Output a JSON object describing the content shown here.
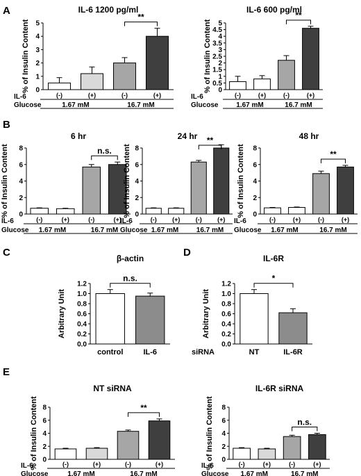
{
  "panels": [
    {
      "letter": "A"
    },
    {
      "letter": "B"
    },
    {
      "letter": "C"
    },
    {
      "letter": "D"
    },
    {
      "letter": "E"
    }
  ],
  "colors": {
    "white": "#ffffff",
    "light_gray": "#d9d9d9",
    "mid_gray": "#a6a6a6",
    "dark_gray": "#3f3f3f",
    "c_gray": "#8c8c8c",
    "axis": "#000000"
  },
  "chart_data": [
    {
      "id": "A1",
      "panel": "A",
      "type": "bar",
      "title": "IL-6 1200 pg/ml",
      "ylabel": "% of Insulin Content",
      "ylim": [
        0,
        5
      ],
      "yticks": [
        0,
        1,
        2,
        3,
        4,
        5
      ],
      "categories": [
        "(-)",
        "(+)",
        "(-)",
        "(+)"
      ],
      "values": [
        0.5,
        1.2,
        2.0,
        4.0
      ],
      "errors": [
        0.4,
        0.5,
        0.4,
        0.6
      ],
      "bar_colors": [
        "white",
        "light_gray",
        "mid_gray",
        "dark_gray"
      ],
      "row1_label": "IL-6",
      "row2_label": "Glucose",
      "groups": [
        "1.67 mM",
        "16.7 mM"
      ],
      "sig": "**"
    },
    {
      "id": "A2",
      "panel": "A",
      "type": "bar",
      "title": "IL-6 600 pg/ml",
      "ylabel": "% of Insulin Content",
      "ylim": [
        0,
        5
      ],
      "yticks": [
        0,
        0.5,
        1,
        1.5,
        2,
        2.5,
        3,
        3.5,
        4,
        4.5,
        5
      ],
      "categories": [
        "(-)",
        "(+)",
        "(-)",
        "(+)"
      ],
      "values": [
        0.6,
        0.8,
        2.2,
        4.6
      ],
      "errors": [
        0.4,
        0.25,
        0.35,
        0.15
      ],
      "bar_colors": [
        "white",
        "white",
        "mid_gray",
        "dark_gray"
      ],
      "row1_label": "IL-6",
      "row2_label": "Glucose",
      "groups": [
        "1.67 mM",
        "16.7 mM"
      ],
      "sig": "**"
    },
    {
      "id": "B1",
      "panel": "B",
      "type": "bar",
      "title": "6 hr",
      "ylabel": "% of Insulin Content",
      "ylim": [
        0,
        8
      ],
      "yticks": [
        0,
        2,
        4,
        6,
        8
      ],
      "categories": [
        "(-)",
        "(+)",
        "(-)",
        "(+)"
      ],
      "values": [
        0.7,
        0.65,
        5.7,
        6.0
      ],
      "errors": [
        0.05,
        0.05,
        0.3,
        0.3
      ],
      "bar_colors": [
        "white",
        "white",
        "mid_gray",
        "dark_gray"
      ],
      "row1_label": "IL-6",
      "row2_label": "Glucose",
      "groups": [
        "1.67 mM",
        "16.7 mM"
      ],
      "sig": "n.s."
    },
    {
      "id": "B2",
      "panel": "B",
      "type": "bar",
      "title": "24 hr",
      "ylabel": "% of Insulin Content",
      "ylim": [
        0,
        8
      ],
      "yticks": [
        0,
        2,
        4,
        6,
        8
      ],
      "categories": [
        "(-)",
        "(+)",
        "(-)",
        "(+)"
      ],
      "values": [
        0.7,
        0.7,
        6.3,
        8.0
      ],
      "errors": [
        0.05,
        0.05,
        0.2,
        0.4
      ],
      "bar_colors": [
        "white",
        "white",
        "mid_gray",
        "dark_gray"
      ],
      "row1_label": "IL-6",
      "row2_label": "Glucose",
      "groups": [
        "1.67 mM",
        "16.7 mM"
      ],
      "sig": "**"
    },
    {
      "id": "B3",
      "panel": "B",
      "type": "bar",
      "title": "48 hr",
      "ylabel": "% of Insulin Content",
      "ylim": [
        0,
        8
      ],
      "yticks": [
        0,
        2,
        4,
        6,
        8
      ],
      "categories": [
        "(-)",
        "(+)",
        "(-)",
        "(+)"
      ],
      "values": [
        0.75,
        0.8,
        4.9,
        5.7
      ],
      "errors": [
        0.05,
        0.05,
        0.3,
        0.2
      ],
      "bar_colors": [
        "white",
        "white",
        "mid_gray",
        "dark_gray"
      ],
      "row1_label": "IL-6",
      "row2_label": "Glucose",
      "groups": [
        "1.67 mM",
        "16.7 mM"
      ],
      "sig": "**"
    },
    {
      "id": "C",
      "panel": "C",
      "type": "bar",
      "title": "β-actin",
      "ylabel": "Arbitrary Unit",
      "ylim": [
        0,
        1.2
      ],
      "yticks": [
        0,
        0.2,
        0.4,
        0.6,
        0.8,
        1.0,
        1.2
      ],
      "categories": [
        "control",
        "IL-6"
      ],
      "values": [
        1.0,
        0.95
      ],
      "errors": [
        0.08,
        0.06
      ],
      "bar_colors": [
        "white",
        "c_gray"
      ],
      "sig": "n.s."
    },
    {
      "id": "D",
      "panel": "D",
      "type": "bar",
      "title": "IL-6R",
      "ylabel": "Arbitrary Unit",
      "ylim": [
        0,
        1.2
      ],
      "yticks": [
        0,
        0.2,
        0.4,
        0.6,
        0.8,
        1.0,
        1.2
      ],
      "categories": [
        "NT",
        "IL-6R"
      ],
      "values": [
        1.0,
        0.62
      ],
      "errors": [
        0.08,
        0.08
      ],
      "bar_colors": [
        "white",
        "c_gray"
      ],
      "row_label": "siRNA",
      "sig": "*"
    },
    {
      "id": "E1",
      "panel": "E",
      "type": "bar",
      "title": "NT siRNA",
      "ylabel": "% of Insulin Content",
      "ylim": [
        0,
        8
      ],
      "yticks": [
        0,
        2,
        4,
        6,
        8
      ],
      "categories": [
        "(-)",
        "(+)",
        "(-)",
        "(+)"
      ],
      "values": [
        1.6,
        1.7,
        4.3,
        5.9
      ],
      "errors": [
        0.1,
        0.1,
        0.2,
        0.3
      ],
      "bar_colors": [
        "white",
        "light_gray",
        "mid_gray",
        "dark_gray"
      ],
      "row1_label": "IL-6",
      "row2_label": "Glucose",
      "groups": [
        "1.67 mM",
        "16.7 mM"
      ],
      "sig": "**"
    },
    {
      "id": "E2",
      "panel": "E",
      "type": "bar",
      "title": "IL-6R siRNA",
      "ylabel": "% of Insulin Content",
      "ylim": [
        0,
        8
      ],
      "yticks": [
        0,
        2,
        4,
        6,
        8
      ],
      "categories": [
        "(-)",
        "(+)",
        "(-)",
        "(+)"
      ],
      "values": [
        1.7,
        1.6,
        3.5,
        3.8
      ],
      "errors": [
        0.1,
        0.1,
        0.2,
        0.2
      ],
      "bar_colors": [
        "white",
        "light_gray",
        "mid_gray",
        "dark_gray"
      ],
      "row1_label": "IL-6",
      "row2_label": "Glucose",
      "groups": [
        "1.67 mM",
        "16.7 mM"
      ],
      "sig": "n.s."
    }
  ]
}
